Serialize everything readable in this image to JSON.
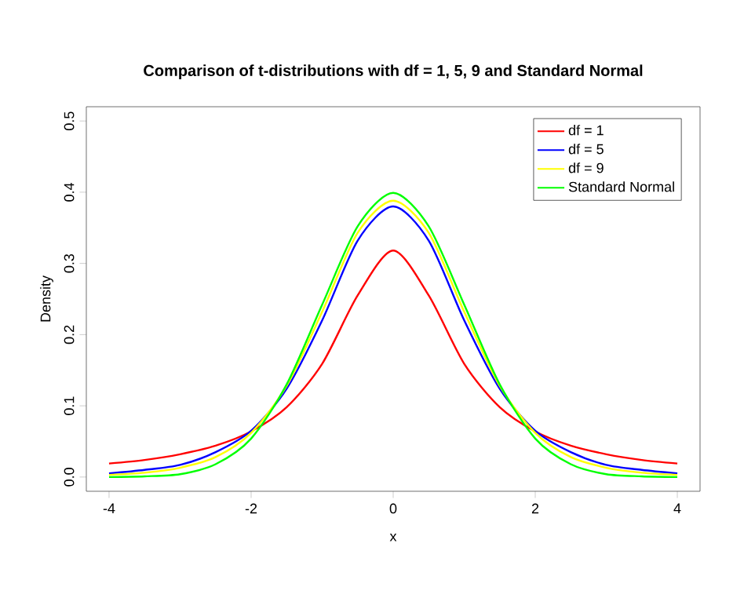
{
  "chart_data": {
    "type": "line",
    "title": "Comparison of t-distributions with df = 1, 5, 9 and Standard Normal",
    "xlabel": "x",
    "ylabel": "Density",
    "x": [
      -4,
      -3.5,
      -3,
      -2.5,
      -2,
      -1.5,
      -1,
      -0.5,
      0,
      0.5,
      1,
      1.5,
      2,
      2.5,
      3,
      3.5,
      4
    ],
    "series": [
      {
        "name": "df = 1",
        "color": "#ff0000",
        "values": [
          0.019,
          0.024,
          0.032,
          0.044,
          0.064,
          0.098,
          0.159,
          0.255,
          0.318,
          0.255,
          0.159,
          0.098,
          0.064,
          0.044,
          0.032,
          0.024,
          0.019
        ]
      },
      {
        "name": "df = 5",
        "color": "#0000ff",
        "values": [
          0.005,
          0.01,
          0.017,
          0.035,
          0.065,
          0.124,
          0.22,
          0.332,
          0.38,
          0.332,
          0.22,
          0.124,
          0.065,
          0.035,
          0.017,
          0.01,
          0.005
        ]
      },
      {
        "name": "df = 9",
        "color": "#ffff00",
        "values": [
          0.003,
          0.006,
          0.013,
          0.028,
          0.062,
          0.128,
          0.232,
          0.343,
          0.388,
          0.343,
          0.232,
          0.128,
          0.062,
          0.028,
          0.013,
          0.006,
          0.003
        ]
      },
      {
        "name": "Standard Normal",
        "color": "#00ff00",
        "values": [
          0.0,
          0.001,
          0.004,
          0.018,
          0.054,
          0.13,
          0.242,
          0.352,
          0.399,
          0.352,
          0.242,
          0.13,
          0.054,
          0.018,
          0.004,
          0.001,
          0.0
        ]
      }
    ],
    "xlim": [
      -4.32,
      4.32
    ],
    "ylim": [
      -0.02,
      0.52
    ],
    "xticks": [
      -4,
      -2,
      0,
      2,
      4
    ],
    "yticks": [
      {
        "value": 0,
        "label": "0.0"
      },
      0.1,
      0.2,
      0.3,
      0.4,
      0.5
    ],
    "legend": "top right"
  }
}
